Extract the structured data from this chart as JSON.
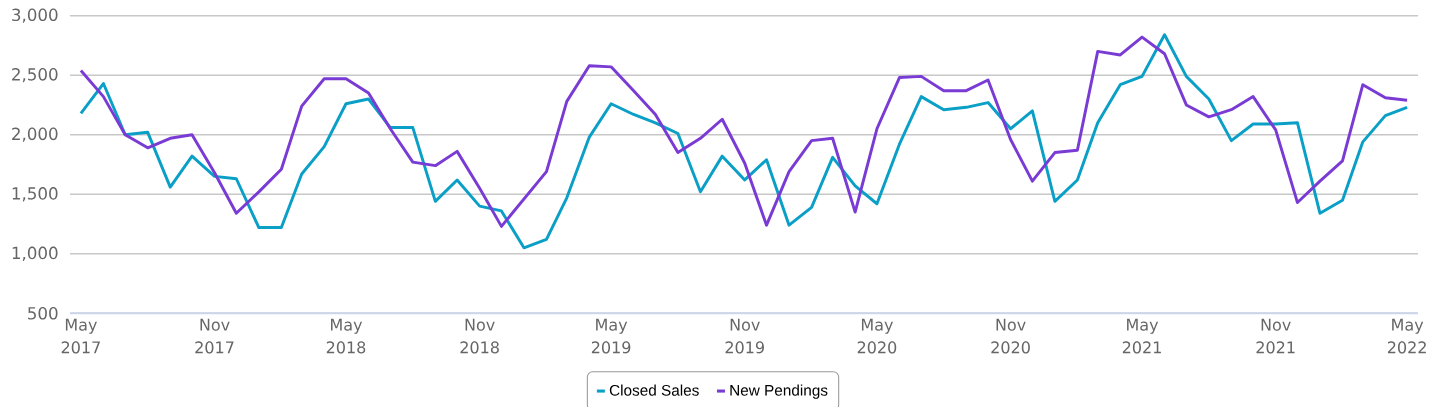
{
  "chart_data": {
    "type": "line",
    "x": [
      "2017-05",
      "2017-06",
      "2017-07",
      "2017-08",
      "2017-09",
      "2017-10",
      "2017-11",
      "2017-12",
      "2018-01",
      "2018-02",
      "2018-03",
      "2018-04",
      "2018-05",
      "2018-06",
      "2018-07",
      "2018-08",
      "2018-09",
      "2018-10",
      "2018-11",
      "2018-12",
      "2019-01",
      "2019-02",
      "2019-03",
      "2019-04",
      "2019-05",
      "2019-06",
      "2019-07",
      "2019-08",
      "2019-09",
      "2019-10",
      "2019-11",
      "2019-12",
      "2020-01",
      "2020-02",
      "2020-03",
      "2020-04",
      "2020-05",
      "2020-06",
      "2020-07",
      "2020-08",
      "2020-09",
      "2020-10",
      "2020-11",
      "2020-12",
      "2021-01",
      "2021-02",
      "2021-03",
      "2021-04",
      "2021-05",
      "2021-06",
      "2021-07",
      "2021-08",
      "2021-09",
      "2021-10",
      "2021-11",
      "2021-12",
      "2022-01",
      "2022-02",
      "2022-03",
      "2022-04",
      "2022-05"
    ],
    "series": [
      {
        "name": "Closed Sales",
        "color": "#0a9fc6",
        "values": [
          2180,
          2430,
          2000,
          2020,
          1560,
          1820,
          1650,
          1630,
          1220,
          1220,
          1670,
          1900,
          2260,
          2300,
          2060,
          2060,
          1440,
          1620,
          1400,
          1360,
          1050,
          1120,
          1470,
          1980,
          2260,
          2170,
          2100,
          2010,
          1520,
          1820,
          1620,
          1790,
          1240,
          1390,
          1810,
          1570,
          1420,
          1920,
          2320,
          2210,
          2230,
          2270,
          2050,
          2200,
          1440,
          1620,
          2100,
          2420,
          2490,
          2840,
          2490,
          2300,
          1950,
          2090,
          2090,
          2100,
          1340,
          1450,
          1940,
          2160,
          2230
        ]
      },
      {
        "name": "New Pendings",
        "color": "#7a3bd5",
        "values": [
          2540,
          2320,
          2000,
          1890,
          1970,
          2000,
          1680,
          1340,
          1520,
          1710,
          2240,
          2470,
          2470,
          2350,
          2050,
          1770,
          1740,
          1860,
          1550,
          1230,
          1460,
          1690,
          2280,
          2580,
          2570,
          2370,
          2170,
          1850,
          1970,
          2130,
          1760,
          1240,
          1690,
          1950,
          1970,
          1350,
          2050,
          2480,
          2490,
          2370,
          2370,
          2460,
          1960,
          1610,
          1850,
          1870,
          2700,
          2670,
          2820,
          2680,
          2250,
          2150,
          2210,
          2320,
          2040,
          1430,
          1610,
          1780,
          2420,
          2310,
          2290
        ]
      }
    ],
    "xlim": [
      "2017-04-16",
      "2022-05-16"
    ],
    "xticks": [
      {
        "value": "2017-05",
        "label": "May 2017"
      },
      {
        "value": "2017-11",
        "label": "Nov 2017"
      },
      {
        "value": "2018-05",
        "label": "May 2018"
      },
      {
        "value": "2018-11",
        "label": "Nov 2018"
      },
      {
        "value": "2019-05",
        "label": "May 2019"
      },
      {
        "value": "2019-11",
        "label": "Nov 2019"
      },
      {
        "value": "2020-05",
        "label": "May 2020"
      },
      {
        "value": "2020-11",
        "label": "Nov 2020"
      },
      {
        "value": "2021-05",
        "label": "May 2021"
      },
      {
        "value": "2021-11",
        "label": "Nov 2021"
      },
      {
        "value": "2022-05",
        "label": "May 2022"
      }
    ],
    "ylim": [
      500,
      3000
    ],
    "yticks": [
      500,
      {
        "value": 1000,
        "label": "1,000"
      },
      {
        "value": 1500,
        "label": "1,500"
      },
      {
        "value": 2000,
        "label": "2,000"
      },
      {
        "value": 2500,
        "label": "2,500"
      },
      {
        "value": 3000,
        "label": "3,000"
      }
    ],
    "grid": "y",
    "legend": "bottom"
  }
}
